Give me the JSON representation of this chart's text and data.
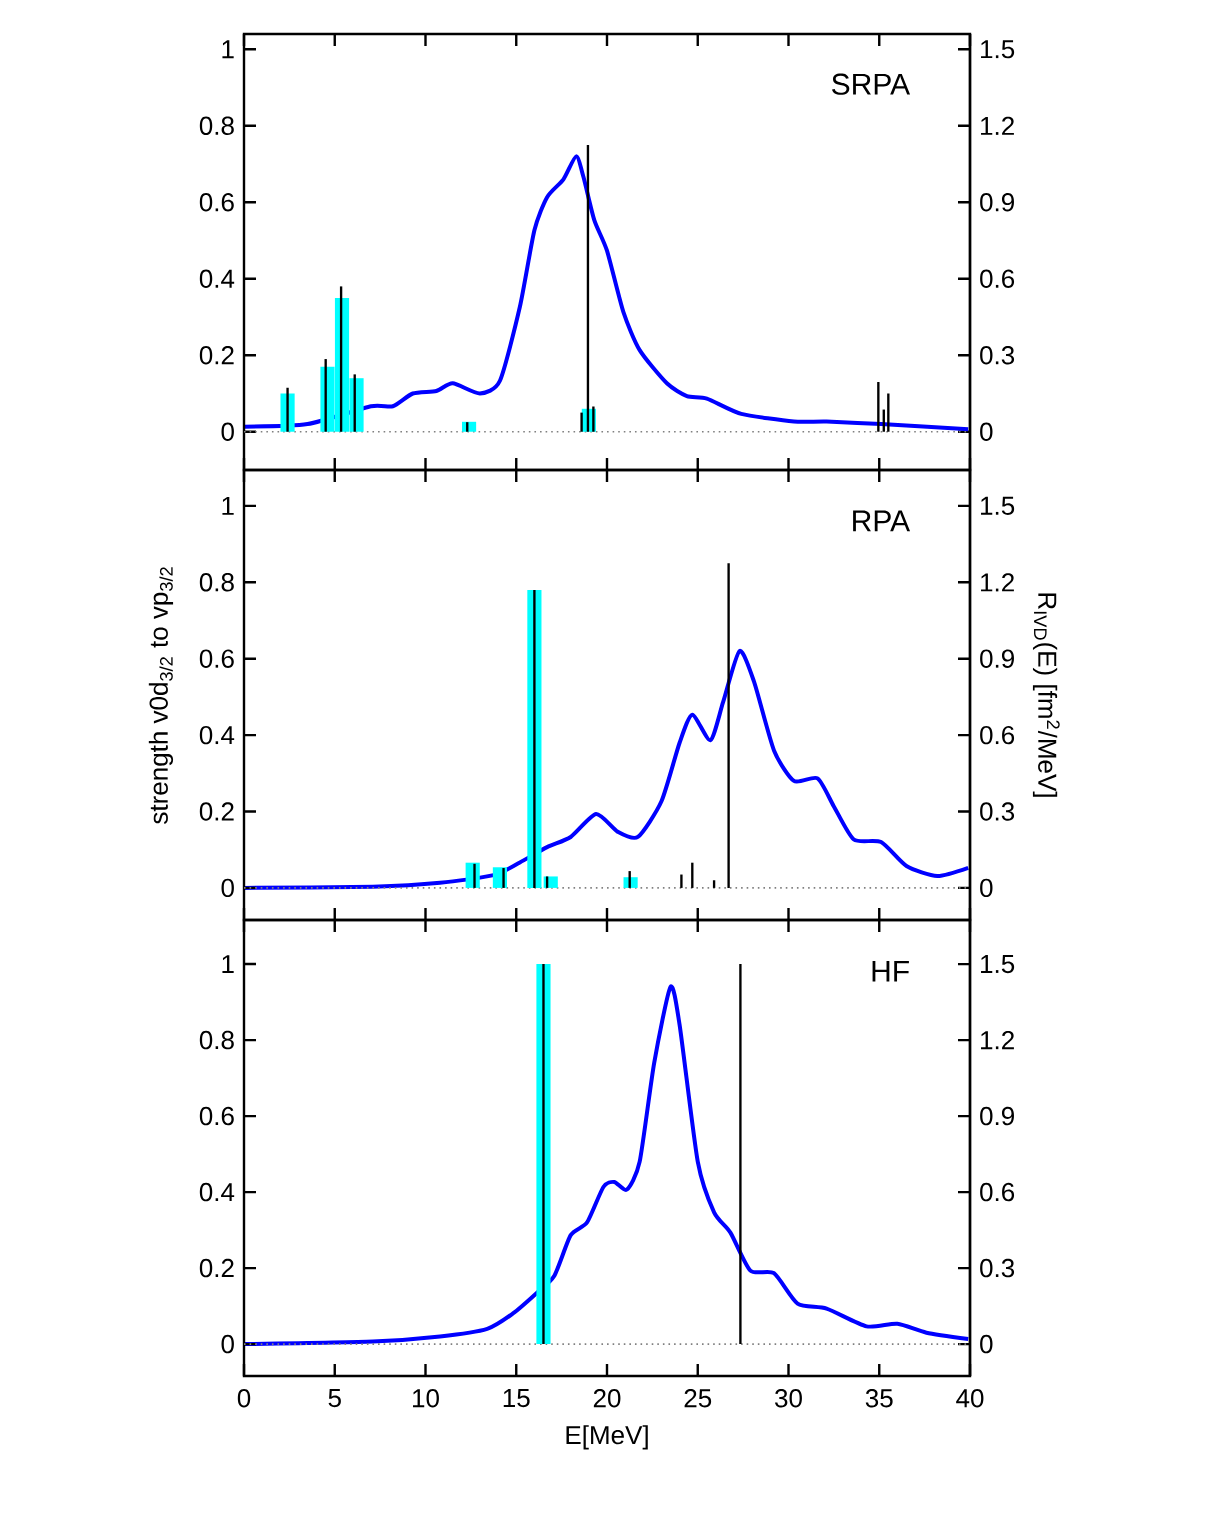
{
  "chart_data": [
    {
      "type": "bar",
      "title": "SRPA",
      "xlim": [
        0,
        40
      ],
      "xticks": [
        0,
        5,
        10,
        15,
        20,
        25,
        30,
        35,
        40
      ],
      "ylim": [
        -0.1,
        1.04
      ],
      "yticks": [
        0,
        0.2,
        0.4,
        0.6,
        0.8,
        1
      ],
      "y2lim": [
        -0.15,
        1.56
      ],
      "y2ticks": [
        0,
        0.3,
        0.6,
        0.9,
        1.2,
        1.5
      ],
      "tick_labels": "y",
      "ref_lines": [
        {
          "axis": "y",
          "value": 0,
          "color": "#808080",
          "line_style": "dotted"
        }
      ],
      "series": [
        {
          "color": "#00ffff",
          "x": [
            2.4,
            4.6,
            5.4,
            6.2,
            12.4,
            19.0
          ],
          "values": [
            0.1,
            0.17,
            0.35,
            0.14,
            0.026,
            0.06
          ]
        },
        {
          "color": "#000000",
          "x": [
            2.4,
            4.5,
            5.35,
            6.1,
            12.3,
            18.6,
            18.95,
            19.25,
            34.95,
            35.25,
            35.5
          ],
          "values": [
            0.115,
            0.19,
            0.38,
            0.15,
            0.025,
            0.05,
            0.75,
            0.066,
            0.13,
            0.058,
            0.1
          ]
        },
        {
          "type": "line",
          "axis": "y2",
          "color": "#0000ff",
          "x": [
            0,
            3.5,
            7,
            8.2,
            9.3,
            10.6,
            11.5,
            13,
            14.1,
            15.2,
            16,
            16.7,
            17.6,
            18.3,
            18.7,
            19.3,
            20,
            20.9,
            21.8,
            23.3,
            24.4,
            25.5,
            27.4,
            30.3,
            32.1,
            35.1,
            39.9
          ],
          "values": [
            0.02,
            0.03,
            0.1,
            0.1,
            0.15,
            0.16,
            0.19,
            0.15,
            0.2,
            0.49,
            0.79,
            0.92,
            0.99,
            1.08,
            1.0,
            0.83,
            0.71,
            0.47,
            0.32,
            0.19,
            0.14,
            0.13,
            0.07,
            0.04,
            0.04,
            0.03,
            0.01
          ]
        }
      ]
    },
    {
      "type": "bar",
      "title": "RPA",
      "ylabel": "strength v0d$_{3/2}$  to  vp$_{3/2}$",
      "y2label": "R$_{IVD}$(E) [fm$^{2}$/MeV]",
      "xlim": [
        0,
        40
      ],
      "xticks": [
        0,
        5,
        10,
        15,
        20,
        25,
        30,
        35,
        40
      ],
      "ylim": [
        -0.084,
        1.094
      ],
      "yticks": [
        0,
        0.2,
        0.4,
        0.6,
        0.8,
        1
      ],
      "y2lim": [
        -0.126,
        1.641
      ],
      "y2ticks": [
        0,
        0.3,
        0.6,
        0.9,
        1.2,
        1.5
      ],
      "tick_labels": "y",
      "ref_lines": [
        {
          "axis": "y",
          "value": 0,
          "color": "#808080",
          "line_style": "dotted"
        }
      ],
      "series": [
        {
          "color": "#00ffff",
          "x": [
            12.6,
            14.1,
            16.0,
            16.9,
            21.3
          ],
          "values": [
            0.066,
            0.054,
            0.78,
            0.03,
            0.028
          ]
        },
        {
          "color": "#000000",
          "x": [
            12.7,
            14.3,
            16.0,
            16.7,
            21.25,
            24.1,
            24.7,
            25.9,
            26.7
          ],
          "values": [
            0.063,
            0.052,
            0.78,
            0.03,
            0.044,
            0.035,
            0.066,
            0.02,
            0.85
          ]
        },
        {
          "type": "line",
          "axis": "y2",
          "color": "#0000ff",
          "x": [
            0,
            7.1,
            10.8,
            13.75,
            15.2,
            16.7,
            18,
            19.4,
            20.6,
            21.7,
            23,
            24,
            24.7,
            25.7,
            26.4,
            27.3,
            28.1,
            29.2,
            30.3,
            31.6,
            32.5,
            33.6,
            35.1,
            36.5,
            38.2,
            39.9
          ],
          "values": [
            0,
            0.005,
            0.02,
            0.05,
            0.1,
            0.16,
            0.2,
            0.29,
            0.22,
            0.2,
            0.34,
            0.57,
            0.68,
            0.58,
            0.73,
            0.93,
            0.81,
            0.54,
            0.42,
            0.43,
            0.32,
            0.19,
            0.18,
            0.086,
            0.047,
            0.079
          ]
        }
      ]
    },
    {
      "type": "bar",
      "title": "HF",
      "xlabel": "E[MeV]",
      "xlim": [
        0,
        40
      ],
      "xticks": [
        0,
        5,
        10,
        15,
        20,
        25,
        30,
        35,
        40
      ],
      "ylim": [
        -0.084,
        1.116
      ],
      "yticks": [
        0,
        0.2,
        0.4,
        0.6,
        0.8,
        1
      ],
      "y2lim": [
        -0.126,
        1.674
      ],
      "y2ticks": [
        0,
        0.3,
        0.6,
        0.9,
        1.2,
        1.5
      ],
      "ref_lines": [
        {
          "axis": "y",
          "value": 0,
          "color": "#808080",
          "line_style": "dotted"
        }
      ],
      "series": [
        {
          "color": "#00ffff",
          "x": [
            16.5
          ],
          "values": [
            1.0
          ]
        },
        {
          "color": "#000000",
          "x": [
            16.5,
            27.35
          ],
          "values": [
            1.0,
            1.0
          ]
        },
        {
          "type": "line",
          "axis": "y2",
          "color": "#0000ff",
          "x": [
            0,
            7.1,
            10.8,
            13.4,
            14.8,
            16.1,
            17.1,
            18,
            18.9,
            19.8,
            20.4,
            21.1,
            21.8,
            22.6,
            23.5,
            24,
            25,
            25.9,
            26.8,
            27.9,
            29.2,
            30.5,
            32.1,
            34.3,
            36,
            37.6,
            39.9
          ],
          "values": [
            0,
            0.01,
            0.03,
            0.06,
            0.12,
            0.2,
            0.27,
            0.43,
            0.48,
            0.62,
            0.64,
            0.61,
            0.72,
            1.11,
            1.41,
            1.26,
            0.72,
            0.52,
            0.44,
            0.29,
            0.28,
            0.16,
            0.14,
            0.07,
            0.08,
            0.045,
            0.02
          ]
        }
      ]
    }
  ]
}
